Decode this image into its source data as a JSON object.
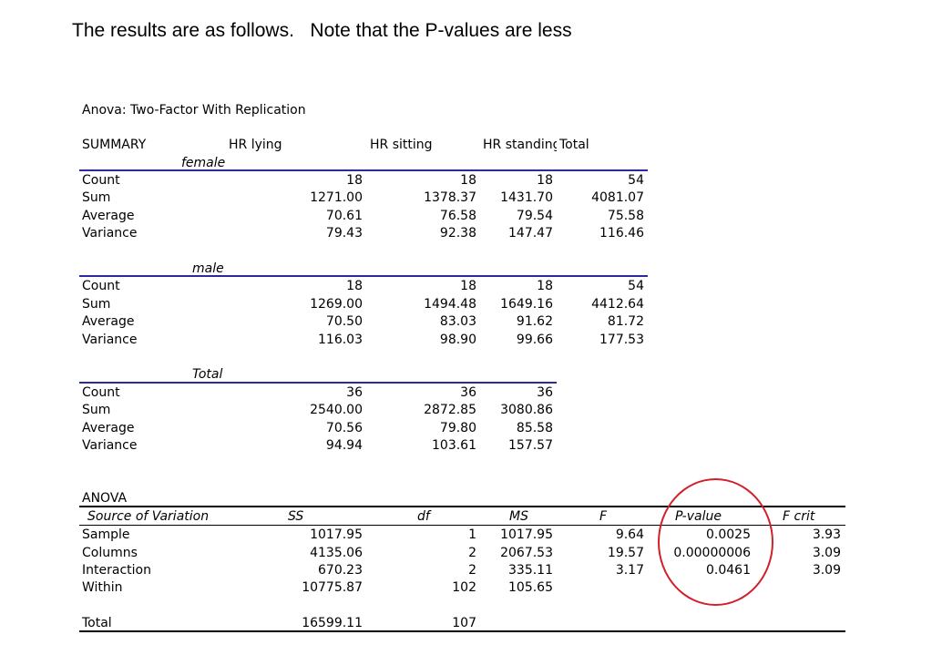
{
  "heading": "The results are as follows.   Note that the P-values are less",
  "title": "Anova: Two-Factor With Replication",
  "summary": {
    "header": [
      "SUMMARY",
      "HR lying",
      "HR sitting",
      "HR standing",
      "Total"
    ],
    "groups": [
      {
        "label": "female",
        "rows": [
          [
            "Count",
            "18",
            "18",
            "18",
            "54"
          ],
          [
            "Sum",
            "1271.00",
            "1378.37",
            "1431.70",
            "4081.07"
          ],
          [
            "Average",
            "70.61",
            "76.58",
            "79.54",
            "75.58"
          ],
          [
            "Variance",
            "79.43",
            "92.38",
            "147.47",
            "116.46"
          ]
        ]
      },
      {
        "label": "male",
        "rows": [
          [
            "Count",
            "18",
            "18",
            "18",
            "54"
          ],
          [
            "Sum",
            "1269.00",
            "1494.48",
            "1649.16",
            "4412.64"
          ],
          [
            "Average",
            "70.50",
            "83.03",
            "91.62",
            "81.72"
          ],
          [
            "Variance",
            "116.03",
            "98.90",
            "99.66",
            "177.53"
          ]
        ]
      },
      {
        "label": "Total",
        "rows": [
          [
            "Count",
            "36",
            "36",
            "36"
          ],
          [
            "Sum",
            "2540.00",
            "2872.85",
            "3080.86"
          ],
          [
            "Average",
            "70.56",
            "79.80",
            "85.58"
          ],
          [
            "Variance",
            "94.94",
            "103.61",
            "157.57"
          ]
        ]
      }
    ]
  },
  "anova": {
    "label": "ANOVA",
    "header": [
      "Source of Variation",
      "SS",
      "df",
      "MS",
      "F",
      "P-value",
      "F crit"
    ],
    "rows": [
      [
        "Sample",
        "1017.95",
        "1",
        "1017.95",
        "9.64",
        "0.0025",
        "3.93"
      ],
      [
        "Columns",
        "4135.06",
        "2",
        "2067.53",
        "19.57",
        "0.00000006",
        "3.09"
      ],
      [
        "Interaction",
        "670.23",
        "2",
        "335.11",
        "3.17",
        "0.0461",
        "3.09"
      ],
      [
        "Within",
        "10775.87",
        "102",
        "105.65",
        "",
        "",
        ""
      ]
    ],
    "total": [
      "Total",
      "16599.11",
      "107"
    ]
  },
  "highlight_color": "#d0202a",
  "group_rule_color": "#2b2b9e"
}
